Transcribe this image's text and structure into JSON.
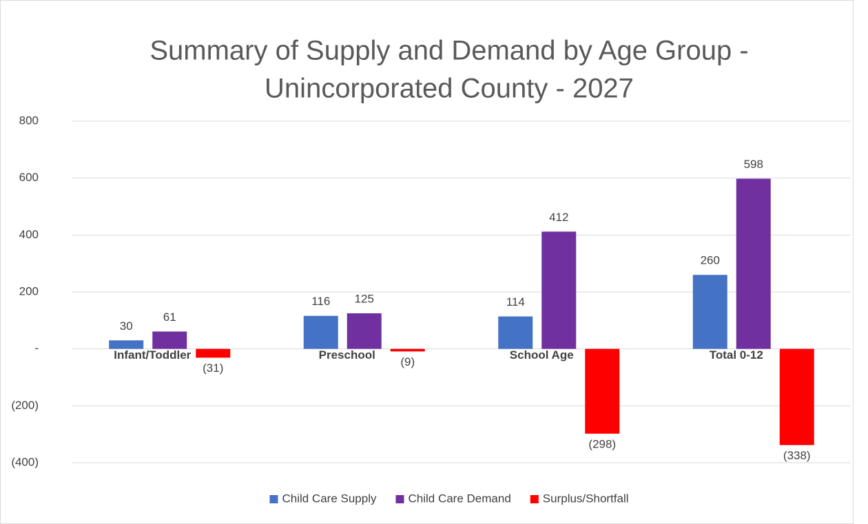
{
  "chart_data": {
    "type": "bar",
    "title": [
      "Summary of Supply and Demand by Age Group -",
      "Unincorporated County - 2027"
    ],
    "categories": [
      "Infant/Toddler",
      "Preschool",
      "School Age",
      "Total 0-12"
    ],
    "series": [
      {
        "name": "Child Care Supply",
        "color": "#4472c4",
        "values": [
          30,
          116,
          114,
          260
        ]
      },
      {
        "name": "Child Care Demand",
        "color": "#7030a0",
        "values": [
          61,
          125,
          412,
          598
        ]
      },
      {
        "name": "Surplus/Shortfall",
        "color": "#ff0000",
        "values": [
          -31,
          -9,
          -298,
          -338
        ],
        "value_labels": [
          "(31)",
          "(9)",
          "(298)",
          "(338)"
        ]
      }
    ],
    "ylim": [
      -400,
      800
    ],
    "yticks": [
      {
        "value": -400,
        "label": "(400)"
      },
      {
        "value": -200,
        "label": "(200)"
      },
      {
        "value": 0,
        "label": "-"
      },
      200,
      400,
      600,
      800
    ],
    "grid": true,
    "legend": "bottom"
  }
}
